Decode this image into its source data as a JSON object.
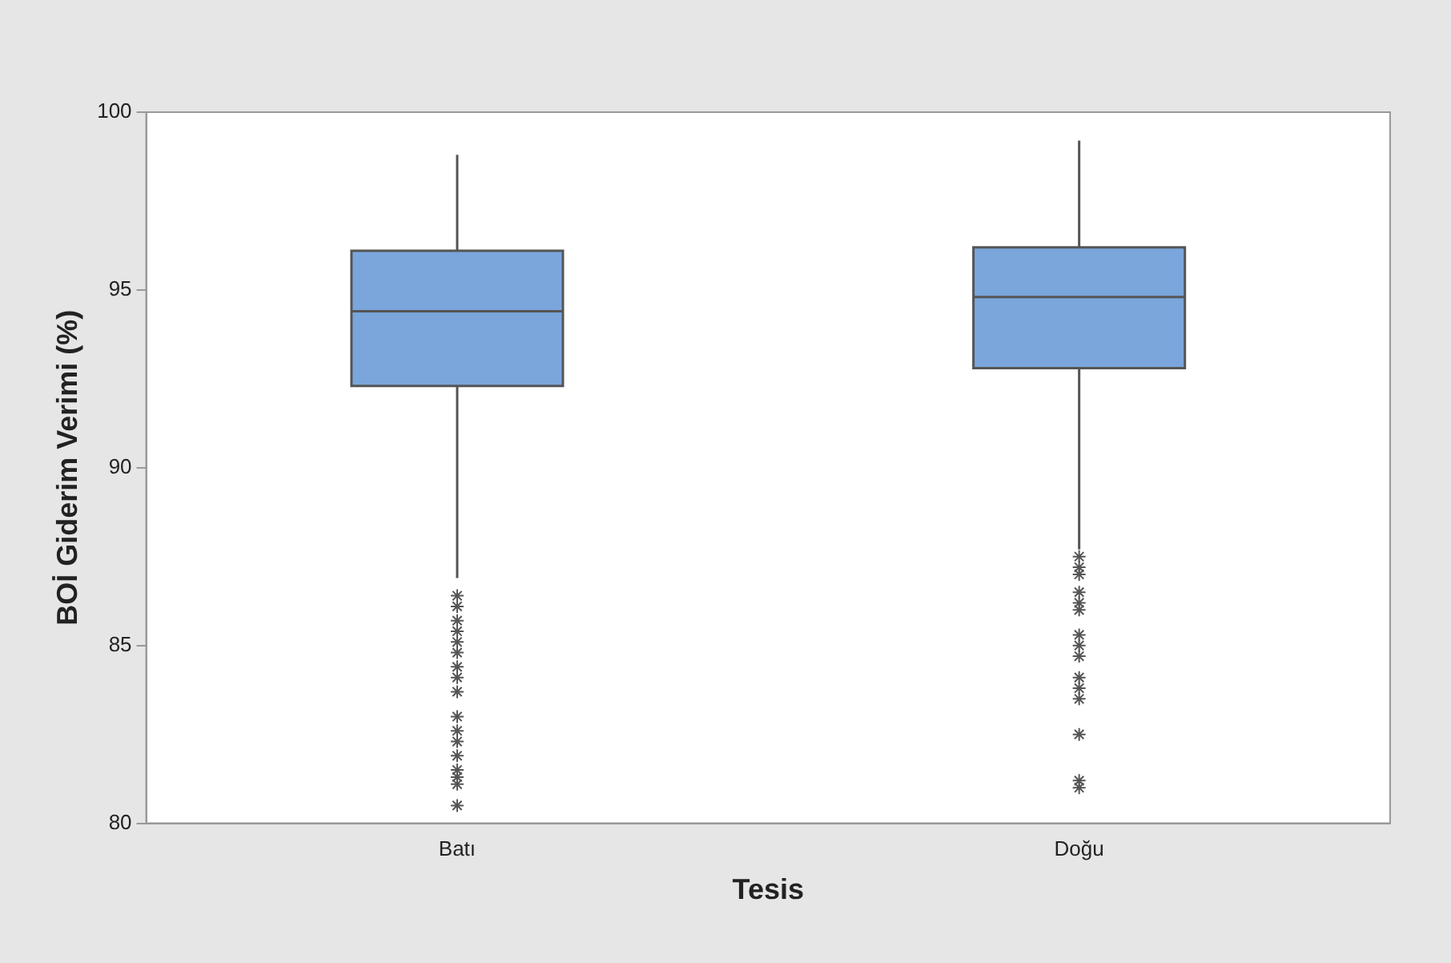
{
  "chart_data": {
    "type": "box",
    "xlabel": "Tesis",
    "ylabel": "BOİ Giderim Verimi (%)",
    "categories": [
      "Batı",
      "Doğu"
    ],
    "color": "#7aa6dc",
    "marker": "star",
    "boxes": [
      {
        "low": 86.9,
        "q1": 92.3,
        "median": 94.4,
        "q3": 96.1,
        "high": 98.8,
        "outliers": [
          86.4,
          86.1,
          85.7,
          85.4,
          85.1,
          84.8,
          84.4,
          84.1,
          83.7,
          83.0,
          82.6,
          82.3,
          81.9,
          81.5,
          81.3,
          81.1,
          80.5
        ]
      },
      {
        "low": 87.7,
        "q1": 92.8,
        "median": 94.8,
        "q3": 96.2,
        "high": 99.2,
        "outliers": [
          87.5,
          87.2,
          87.0,
          86.5,
          86.2,
          86.0,
          85.3,
          85.0,
          84.7,
          84.1,
          83.8,
          83.5,
          82.5,
          81.2,
          81.0
        ]
      }
    ],
    "ylim": [
      80,
      100
    ],
    "yticks": [
      80,
      85,
      90,
      95,
      100
    ],
    "grid": false,
    "legend": false
  }
}
